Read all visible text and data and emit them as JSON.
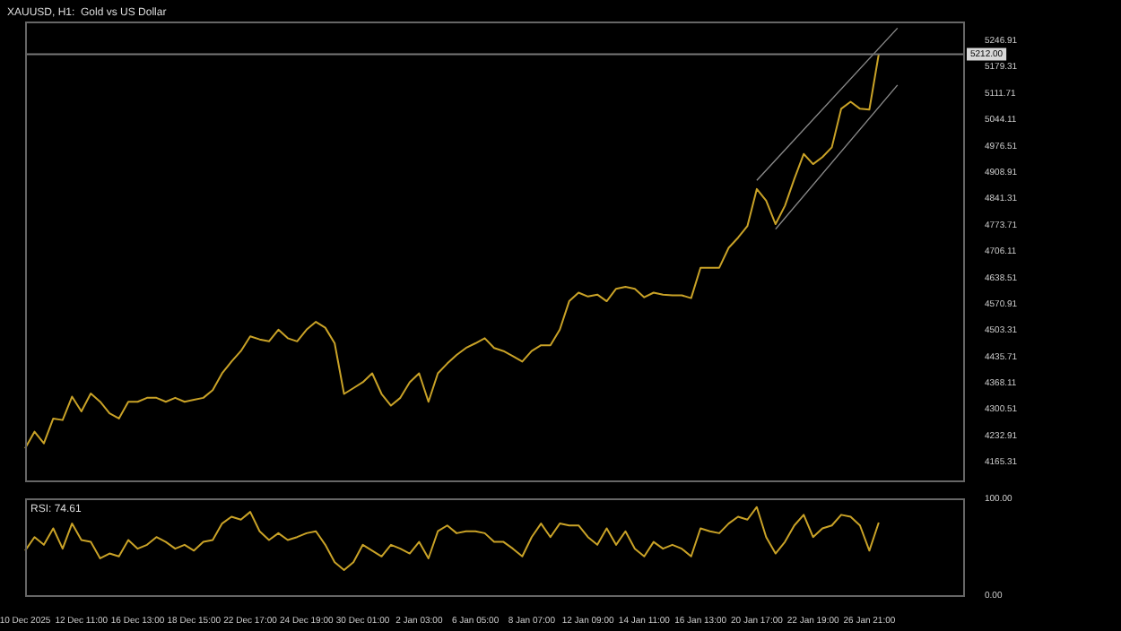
{
  "chart_data": [
    {
      "type": "line",
      "title": "XAUUSD, H1:  Gold vs US Dollar",
      "categories": [
        null,
        null,
        null,
        null,
        null,
        null,
        null,
        null,
        null,
        null,
        null,
        null,
        null,
        null,
        null,
        null,
        null,
        null,
        null,
        null,
        null,
        null,
        null,
        null,
        null,
        null,
        null,
        null,
        null,
        null,
        null,
        null,
        null,
        null,
        null,
        null,
        null,
        null,
        null,
        null,
        null,
        null,
        null,
        null,
        null,
        null,
        null,
        null,
        null,
        null,
        null,
        null,
        null,
        null,
        null,
        null,
        null,
        null,
        null,
        null,
        null,
        null,
        null,
        null,
        null,
        null,
        null,
        null,
        null,
        null,
        null,
        null,
        null,
        null,
        null,
        null,
        null,
        null,
        null,
        null,
        null,
        null,
        null,
        null,
        null,
        null,
        null,
        null,
        null,
        null,
        null,
        null,
        null,
        null,
        null,
        null,
        null,
        null,
        null,
        null,
        null
      ],
      "series": [
        {
          "color": "#c9a227",
          "values": [
            4200,
            4243,
            4213,
            4277,
            4273,
            4333,
            4295,
            4341,
            4320,
            4290,
            4277,
            4320,
            4320,
            4330,
            4330,
            4320,
            4330,
            4320,
            4325,
            4330,
            4350,
            4393,
            4423,
            4450,
            4488,
            4480,
            4475,
            4505,
            4483,
            4475,
            4505,
            4525,
            4510,
            4470,
            4340,
            4355,
            4370,
            4393,
            4340,
            4310,
            4330,
            4370,
            4393,
            4320,
            4393,
            4418,
            4440,
            4458,
            4470,
            4483,
            4458,
            4450,
            4437,
            4423,
            4450,
            4465,
            4465,
            4505,
            4578,
            4600,
            4590,
            4595,
            4578,
            4610,
            4615,
            4610,
            4588,
            4600,
            4595,
            4593,
            4593,
            4586,
            4664,
            4664,
            4664,
            4715,
            4741,
            4771,
            4866,
            4836,
            4776,
            4823,
            4892,
            4956,
            4930,
            4948,
            4973,
            5072,
            5090,
            5072,
            5070,
            5212,
            null,
            null,
            null,
            null,
            null,
            null,
            null,
            null,
            null
          ]
        },
        {
          "type": "line",
          "color": "#8a8a8a",
          "values": [
            null,
            null,
            null,
            null,
            null,
            null,
            null,
            null,
            null,
            null,
            null,
            null,
            null,
            null,
            null,
            null,
            null,
            null,
            null,
            null,
            null,
            null,
            null,
            null,
            null,
            null,
            null,
            null,
            null,
            null,
            null,
            null,
            null,
            null,
            null,
            null,
            null,
            null,
            null,
            null,
            null,
            null,
            null,
            null,
            null,
            null,
            null,
            null,
            null,
            null,
            null,
            null,
            null,
            null,
            null,
            null,
            null,
            null,
            null,
            null,
            null,
            null,
            null,
            null,
            null,
            null,
            null,
            null,
            null,
            null,
            null,
            null,
            null,
            null,
            null,
            null,
            null,
            null,
            4888,
            null,
            null,
            null,
            null,
            null,
            null,
            null,
            null,
            null,
            null,
            null,
            null,
            null,
            null,
            5279,
            null,
            null,
            null,
            null,
            null,
            null,
            null
          ]
        },
        {
          "type": "line",
          "color": "#8a8a8a",
          "values": [
            null,
            null,
            null,
            null,
            null,
            null,
            null,
            null,
            null,
            null,
            null,
            null,
            null,
            null,
            null,
            null,
            null,
            null,
            null,
            null,
            null,
            null,
            null,
            null,
            null,
            null,
            null,
            null,
            null,
            null,
            null,
            null,
            null,
            null,
            null,
            null,
            null,
            null,
            null,
            null,
            null,
            null,
            null,
            null,
            null,
            null,
            null,
            null,
            null,
            null,
            null,
            null,
            null,
            null,
            null,
            null,
            null,
            null,
            null,
            null,
            null,
            null,
            null,
            null,
            null,
            null,
            null,
            null,
            null,
            null,
            null,
            null,
            null,
            null,
            null,
            null,
            null,
            null,
            null,
            null,
            4763,
            null,
            null,
            null,
            null,
            null,
            null,
            null,
            null,
            null,
            null,
            null,
            null,
            5133,
            null,
            null,
            null,
            null,
            null,
            null,
            null
          ]
        }
      ],
      "ylim": [
        4118,
        5296
      ],
      "yticks": [
        5246.91,
        5179.31,
        5111.71,
        5044.11,
        4976.51,
        4908.91,
        4841.31,
        4773.71,
        4706.11,
        4638.51,
        4570.91,
        4503.31,
        4435.71,
        4368.11,
        4300.51,
        4232.91,
        4165.31
      ],
      "ref_lines": [
        {
          "axis": "y",
          "value": 5212,
          "label": "5212.00",
          "color": "#777777"
        }
      ],
      "grid": false,
      "legend": false,
      "tick_labels": "y"
    },
    {
      "type": "line",
      "annotations": [
        "RSI: 74.61"
      ],
      "categories": [
        "10 Dec 2025",
        null,
        null,
        null,
        null,
        null,
        "12 Dec 11:00",
        null,
        null,
        null,
        null,
        null,
        "16 Dec 13:00",
        null,
        null,
        null,
        null,
        null,
        "18 Dec 15:00",
        null,
        null,
        null,
        null,
        null,
        "22 Dec 17:00",
        null,
        null,
        null,
        null,
        null,
        "24 Dec 19:00",
        null,
        null,
        null,
        null,
        null,
        "30 Dec 01:00",
        null,
        null,
        null,
        null,
        null,
        "2 Jan 03:00",
        null,
        null,
        null,
        null,
        null,
        "6 Jan 05:00",
        null,
        null,
        null,
        null,
        null,
        "8 Jan 07:00",
        null,
        null,
        null,
        null,
        null,
        "12 Jan 09:00",
        null,
        null,
        null,
        null,
        null,
        "14 Jan 11:00",
        null,
        null,
        null,
        null,
        null,
        "16 Jan 13:00",
        null,
        null,
        null,
        null,
        null,
        "20 Jan 17:00",
        null,
        null,
        null,
        null,
        null,
        "22 Jan 19:00",
        null,
        null,
        null,
        null,
        null,
        "26 Jan 21:00",
        null,
        null,
        null,
        null,
        null,
        null,
        null,
        null,
        null,
        null
      ],
      "series": [
        {
          "color": "#c9a227",
          "values": [
            46,
            60,
            52,
            69,
            48,
            74,
            57,
            55,
            38,
            43,
            40,
            57,
            48,
            52,
            60,
            55,
            48,
            52,
            46,
            55,
            57,
            74,
            81,
            78,
            86,
            66,
            57,
            64,
            57,
            60,
            64,
            66,
            52,
            34,
            26,
            34,
            52,
            46,
            40,
            52,
            48,
            43,
            55,
            38,
            66,
            72,
            64,
            66,
            66,
            64,
            55,
            55,
            48,
            40,
            60,
            74,
            60,
            74,
            72,
            72,
            60,
            52,
            69,
            52,
            66,
            48,
            40,
            55,
            48,
            52,
            48,
            40,
            69,
            66,
            64,
            74,
            81,
            78,
            91,
            60,
            43,
            55,
            72,
            83,
            60,
            69,
            72,
            83,
            81,
            72,
            46,
            75,
            null,
            null,
            null,
            null,
            null,
            null,
            null,
            null,
            null
          ]
        }
      ],
      "ylim": [
        0,
        100
      ],
      "yticks": [
        {
          "value": 100,
          "label": "100.00"
        },
        {
          "value": 0,
          "label": "0.00"
        }
      ],
      "grid": false,
      "legend": false
    }
  ]
}
